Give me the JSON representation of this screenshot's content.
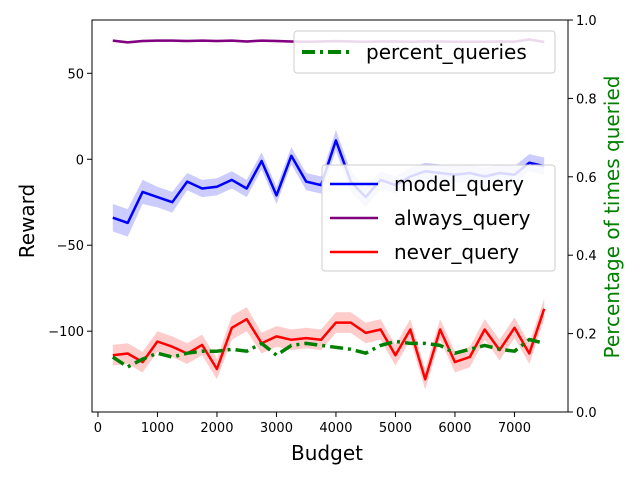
{
  "chart_data": {
    "type": "line",
    "xlabel": "Budget",
    "ylabel": "Reward",
    "ylabel_right": "Percentage of times queried",
    "xlim": [
      -100,
      7900
    ],
    "ylim": [
      -147,
      81
    ],
    "ylim_right": [
      0.0,
      1.0
    ],
    "grid": false,
    "x_ticks": [
      0,
      1000,
      2000,
      3000,
      4000,
      5000,
      6000,
      7000
    ],
    "y_ticks": [
      50,
      0,
      -50,
      -100
    ],
    "y_ticks_right": [
      0.0,
      0.2,
      0.4,
      0.6,
      0.8,
      1.0
    ],
    "x": [
      250,
      500,
      750,
      1000,
      1250,
      1500,
      1750,
      2000,
      2250,
      2500,
      2750,
      3000,
      3250,
      3500,
      3750,
      4000,
      4250,
      4500,
      4750,
      5000,
      5250,
      5500,
      5750,
      6000,
      6250,
      6500,
      6750,
      7000,
      7250,
      7500
    ],
    "series": [
      {
        "name": "model_query",
        "color": "#0000ff",
        "axis": "left",
        "style": "solid",
        "values": [
          -34,
          -37,
          -19,
          -22,
          -25,
          -13,
          -17,
          -16,
          -12,
          -17,
          -1,
          -21,
          2,
          -13,
          -15,
          11,
          -13,
          -22,
          -12,
          -15,
          -10,
          -7,
          -8,
          -9,
          -8,
          -10,
          -8,
          -9,
          -2,
          -4
        ],
        "band": [
          8,
          8,
          7,
          6,
          6,
          5,
          5,
          5,
          5,
          5,
          5,
          5,
          5,
          5,
          5,
          6,
          6,
          6,
          5,
          5,
          5,
          5,
          5,
          5,
          5,
          5,
          5,
          5,
          5,
          5
        ]
      },
      {
        "name": "always_query",
        "color": "#800080",
        "axis": "left",
        "style": "solid",
        "values": [
          69,
          68,
          68.8,
          69,
          69,
          68.8,
          69,
          68.8,
          69,
          68.5,
          69,
          68.8,
          68.5,
          68.3,
          68.5,
          68.7,
          68.5,
          68.3,
          68.5,
          68.5,
          68.3,
          68.5,
          68.5,
          68.3,
          68.4,
          68.3,
          68.5,
          68.4,
          69.7,
          68.2
        ],
        "band": [
          0.8,
          0.8,
          0.8,
          0.8,
          0.8,
          0.8,
          0.8,
          0.8,
          0.8,
          0.8,
          0.8,
          0.8,
          0.8,
          0.8,
          0.8,
          0.8,
          0.8,
          0.8,
          0.8,
          0.8,
          0.8,
          0.8,
          0.8,
          0.8,
          0.8,
          0.8,
          0.8,
          0.8,
          0.8,
          0.8
        ]
      },
      {
        "name": "never_query",
        "color": "#ff0000",
        "axis": "left",
        "style": "solid",
        "values": [
          -114,
          -113,
          -118,
          -106,
          -109,
          -113,
          -108,
          -122,
          -98,
          -93,
          -107,
          -103,
          -105,
          -104,
          -105,
          -95,
          -95,
          -101,
          -99,
          -114,
          -99,
          -128,
          -99,
          -118,
          -115,
          -99,
          -111,
          -98,
          -113,
          -87
        ],
        "band": [
          6,
          6,
          6,
          6,
          6,
          6,
          6,
          6,
          7,
          7,
          6,
          6,
          6,
          6,
          6,
          6,
          6,
          6,
          6,
          6,
          6,
          6,
          6,
          6,
          6,
          6,
          6,
          6,
          6,
          6
        ]
      },
      {
        "name": "percent_queries",
        "color": "#008000",
        "axis": "right",
        "style": "dashdot",
        "values": [
          0.14,
          0.115,
          0.135,
          0.15,
          0.14,
          0.15,
          0.155,
          0.155,
          0.16,
          0.155,
          0.175,
          0.145,
          0.17,
          0.175,
          0.17,
          0.165,
          0.16,
          0.15,
          0.17,
          0.18,
          0.175,
          0.175,
          0.17,
          0.15,
          0.16,
          0.17,
          0.16,
          0.155,
          0.185,
          0.175
        ]
      }
    ],
    "legends": [
      {
        "placement": "top-right",
        "entries": [
          "percent_queries"
        ]
      },
      {
        "placement": "center-right",
        "entries": [
          "model_query",
          "always_query",
          "never_query"
        ]
      }
    ]
  }
}
